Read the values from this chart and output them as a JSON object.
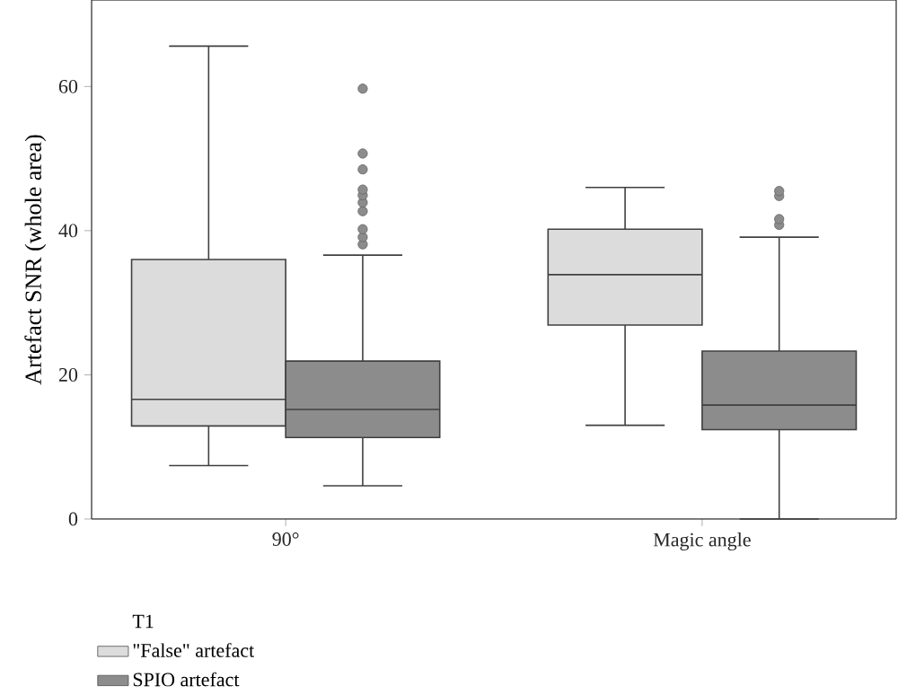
{
  "chart_data": {
    "type": "box",
    "ylabel": "Artefact SNR (whole area)",
    "legend_title": "T1",
    "legend": "bottom left",
    "categories": [
      "90°",
      "Magic angle"
    ],
    "ylim": [
      0,
      72
    ],
    "yticks": [
      0,
      20,
      40,
      60
    ],
    "series": [
      {
        "name": "\"False\" artefact",
        "color": "#dcdcdc",
        "boxes": [
          {
            "low": 7.4,
            "q1": 12.9,
            "median": 16.6,
            "q3": 36,
            "high": 65.6
          },
          {
            "low": 13,
            "q1": 26.9,
            "median": 33.9,
            "q3": 40.2,
            "high": 46
          }
        ]
      },
      {
        "name": "SPIO artefact",
        "color": "#8c8c8c",
        "boxes": [
          {
            "low": 4.6,
            "q1": 11.3,
            "median": 15.2,
            "q3": 21.9,
            "high": 36.6,
            "outliers": [
              38.1,
              39.1,
              40.2,
              42.7,
              43.9,
              44.9,
              45.7,
              48.5,
              50.7,
              59.7
            ]
          },
          {
            "low": 0,
            "q1": 12.4,
            "median": 15.8,
            "q3": 23.3,
            "high": 39.1,
            "outliers": [
              40.8,
              41.6,
              44.8,
              45.5
            ]
          }
        ]
      }
    ]
  }
}
